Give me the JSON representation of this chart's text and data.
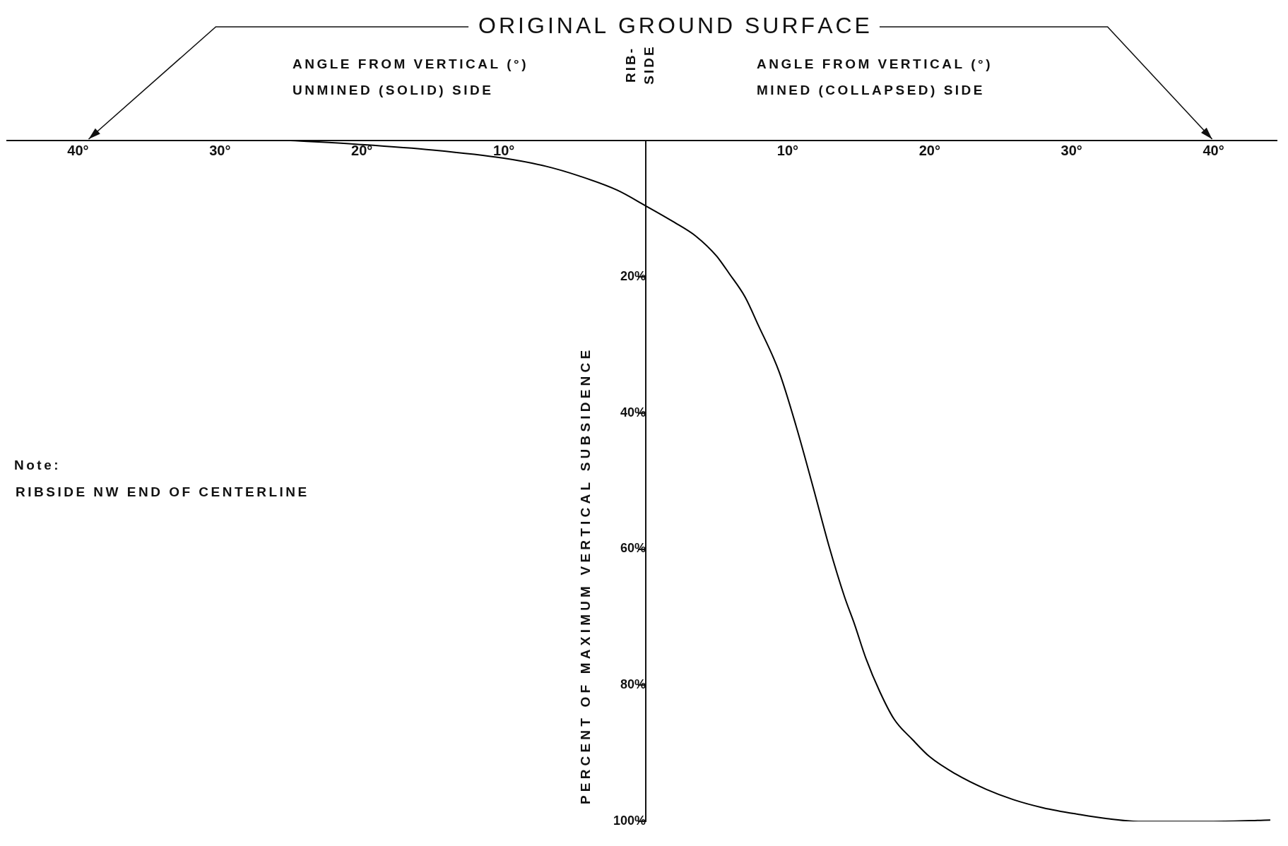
{
  "chart_data": {
    "type": "line",
    "ylabel": "PERCENT OF MAXIMUM VERTICAL SUBSIDENCE",
    "annotations": [
      "ORIGINAL GROUND SURFACE",
      "ANGLE FROM VERTICAL (°)",
      "UNMINED (SOLID) SIDE",
      "RIB-SIDE",
      "ANGLE FROM VERTICAL (°)",
      "MINED (COLLAPSED) SIDE",
      "Note:",
      "RIBSIDE NW END OF CENTERLINE"
    ],
    "series": [
      {
        "color": "#000000",
        "x": [
          -25,
          -20,
          -15,
          -10,
          -7,
          -4.7,
          -2,
          0,
          2,
          3.5,
          5,
          5.9,
          7,
          7.9,
          9.4,
          10.6,
          11.8,
          12.9,
          14,
          14.7,
          15.5,
          16.5,
          17.5,
          18.8,
          20,
          21.8,
          24,
          25.9,
          28,
          30.6,
          32.5,
          34.7,
          40,
          44
        ],
        "values": [
          0,
          0.6,
          1.4,
          2.6,
          3.8,
          5.2,
          7.3,
          9.6,
          12,
          14,
          17,
          19.6,
          23,
          27,
          34,
          42,
          51,
          59.5,
          67,
          71,
          76,
          81,
          85,
          88,
          90.5,
          93,
          95.3,
          96.8,
          98,
          99,
          99.6,
          100,
          100,
          99.8
        ]
      }
    ],
    "xlim": [
      -45,
      44.5
    ],
    "xticks": [
      {
        "value": -40,
        "label": "40°"
      },
      {
        "value": -30,
        "label": "30°"
      },
      {
        "value": -20,
        "label": "20°"
      },
      {
        "value": -10,
        "label": "10°"
      },
      {
        "value": 10,
        "label": "10°"
      },
      {
        "value": 20,
        "label": "20°"
      },
      {
        "value": 30,
        "label": "30°"
      },
      {
        "value": 40,
        "label": "40°"
      }
    ],
    "ylim": [
      100,
      0
    ],
    "yticks": [
      {
        "value": 20,
        "label": "20%"
      },
      {
        "value": 40,
        "label": "40%"
      },
      {
        "value": 60,
        "label": "60%"
      },
      {
        "value": 80,
        "label": "80%"
      },
      {
        "value": 100,
        "label": "100%"
      }
    ],
    "grid": false,
    "legend": false,
    "marker": "none",
    "line_style": "solid"
  }
}
